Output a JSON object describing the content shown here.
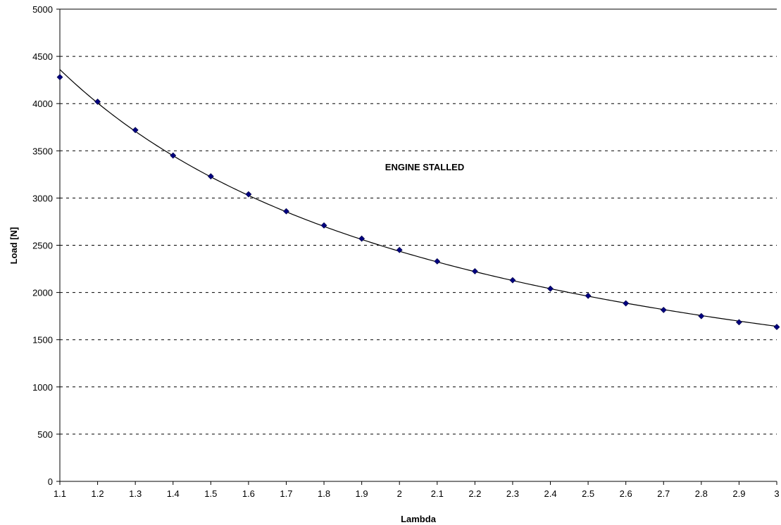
{
  "chart_data": {
    "type": "scatter",
    "xlabel": "Lambda",
    "ylabel": "Load [N]",
    "annotation": "ENGINE STALLED",
    "xlim": [
      1.1,
      3.0
    ],
    "ylim": [
      0,
      5000
    ],
    "x_ticks": [
      "1.1",
      "1.2",
      "1.3",
      "1.4",
      "1.5",
      "1.6",
      "1.7",
      "1.8",
      "1.9",
      "2",
      "2.1",
      "2.2",
      "2.3",
      "2.4",
      "2.5",
      "2.6",
      "2.7",
      "2.8",
      "2.9",
      "3"
    ],
    "y_ticks": [
      "0",
      "500",
      "1000",
      "1500",
      "2000",
      "2500",
      "3000",
      "3500",
      "4000",
      "4500",
      "5000"
    ],
    "grid": "horizontal dashed",
    "series": [
      {
        "x": [
          1.1,
          1.2,
          1.3,
          1.4,
          1.5,
          1.6,
          1.7,
          1.8,
          1.9,
          2.0,
          2.1,
          2.2,
          2.3,
          2.4,
          2.5,
          2.6,
          2.7,
          2.8,
          2.9,
          3.0
        ],
        "values": [
          4280,
          4020,
          3720,
          3450,
          3230,
          3040,
          2860,
          2710,
          2570,
          2450,
          2330,
          2225,
          2130,
          2040,
          1965,
          1885,
          1815,
          1750,
          1685,
          1635
        ],
        "marker": "diamond",
        "color": "#000080"
      }
    ],
    "trendline": {
      "type": "power",
      "color": "#000000"
    }
  }
}
